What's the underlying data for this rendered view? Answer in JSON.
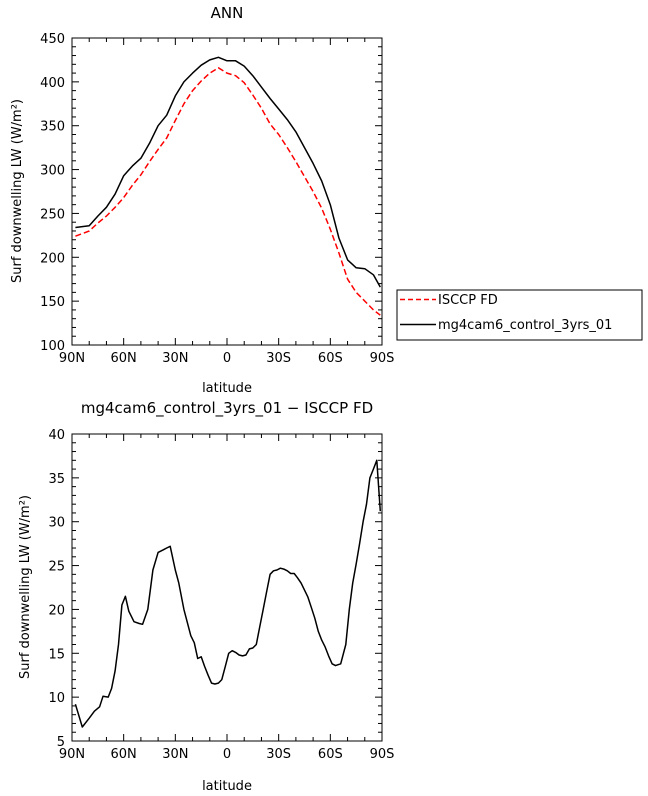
{
  "chart_data": [
    {
      "type": "line",
      "title": "ANN",
      "xlabel": "latitude",
      "ylabel": "Surf downwelling LW (W/m²)",
      "xlim": [
        -90,
        90
      ],
      "ylim": [
        100,
        450
      ],
      "xticks": [
        -90,
        -60,
        -30,
        0,
        30,
        60,
        90
      ],
      "xtick_labels": [
        "90N",
        "60N",
        "30N",
        "0",
        "30S",
        "60S",
        "90S"
      ],
      "yticks": [
        100,
        150,
        200,
        250,
        300,
        350,
        400,
        450
      ],
      "ytick_labels": [
        "100",
        "150",
        "200",
        "250",
        "300",
        "350",
        "400",
        "450"
      ],
      "legend_position": "right",
      "series": [
        {
          "name": "ISCCP FD",
          "color": "#ff0000",
          "style": "dashed",
          "x": [
            -88,
            -80,
            -75,
            -70,
            -65,
            -60,
            -55,
            -50,
            -45,
            -40,
            -35,
            -30,
            -25,
            -20,
            -15,
            -10,
            -5,
            0,
            5,
            10,
            15,
            20,
            25,
            30,
            35,
            40,
            45,
            50,
            55,
            60,
            65,
            70,
            75,
            80,
            85,
            89
          ],
          "y": [
            224,
            230,
            239,
            247,
            257,
            268,
            282,
            294,
            309,
            323,
            336,
            356,
            375,
            390,
            401,
            410,
            416,
            410,
            407,
            399,
            385,
            370,
            352,
            340,
            325,
            309,
            292,
            275,
            256,
            232,
            205,
            175,
            160,
            150,
            140,
            134
          ]
        },
        {
          "name": "mg4cam6_control_3yrs_01",
          "color": "#000000",
          "style": "solid",
          "x": [
            -88,
            -80,
            -75,
            -70,
            -65,
            -60,
            -55,
            -50,
            -45,
            -40,
            -35,
            -30,
            -25,
            -20,
            -15,
            -10,
            -5,
            0,
            5,
            10,
            15,
            20,
            25,
            30,
            35,
            40,
            45,
            50,
            55,
            60,
            65,
            70,
            75,
            80,
            85,
            89
          ],
          "y": [
            234,
            236,
            247,
            257,
            272,
            293,
            304,
            313,
            330,
            350,
            362,
            384,
            400,
            410,
            419,
            425,
            428,
            424,
            424,
            418,
            407,
            394,
            381,
            369,
            357,
            343,
            325,
            307,
            287,
            260,
            222,
            197,
            188,
            187,
            180,
            166
          ]
        }
      ]
    },
    {
      "type": "line",
      "title": "mg4cam6_control_3yrs_01 − ISCCP FD",
      "xlabel": "latitude",
      "ylabel": "Surf downwelling LW (W/m²)",
      "xlim": [
        -90,
        90
      ],
      "ylim": [
        5,
        40
      ],
      "xticks": [
        -90,
        -60,
        -30,
        0,
        30,
        60,
        90
      ],
      "xtick_labels": [
        "90N",
        "60N",
        "30N",
        "0",
        "30S",
        "60S",
        "90S"
      ],
      "yticks": [
        5,
        10,
        15,
        20,
        25,
        30,
        35,
        40
      ],
      "ytick_labels": [
        "5",
        "10",
        "15",
        "20",
        "25",
        "30",
        "35",
        "40"
      ],
      "series": [
        {
          "color": "#000000",
          "style": "solid",
          "x": [
            -88,
            -84,
            -80,
            -77,
            -74,
            -72,
            -69,
            -67,
            -65,
            -63,
            -61,
            -59,
            -57,
            -54,
            -51,
            -49,
            -46,
            -43,
            -40,
            -37,
            -35,
            -33,
            -30,
            -28,
            -25,
            -21,
            -19,
            -17,
            -15,
            -13,
            -11,
            -9,
            -7,
            -5,
            -3,
            -1,
            1,
            3,
            5,
            7,
            9,
            11,
            13,
            15,
            17,
            19,
            21,
            23,
            25,
            27,
            29,
            31,
            33,
            35,
            37,
            39,
            41,
            43,
            45,
            47,
            49,
            51,
            53,
            55,
            57,
            59,
            61,
            63,
            66,
            69,
            71,
            73,
            75,
            77,
            79,
            81,
            83,
            85,
            87,
            89
          ],
          "y": [
            9.2,
            6.6,
            7.6,
            8.4,
            8.9,
            10.1,
            10.0,
            11.0,
            13.0,
            16.0,
            20.5,
            21.5,
            19.8,
            18.6,
            18.4,
            18.3,
            20.0,
            24.5,
            26.5,
            26.8,
            27.0,
            27.2,
            24.5,
            23.0,
            20.0,
            17.0,
            16.2,
            14.4,
            14.6,
            13.5,
            12.5,
            11.6,
            11.5,
            11.6,
            12.0,
            13.5,
            15.0,
            15.3,
            15.1,
            14.8,
            14.7,
            14.8,
            15.5,
            15.6,
            16.0,
            18.0,
            20.0,
            22.0,
            24.0,
            24.4,
            24.5,
            24.7,
            24.6,
            24.4,
            24.1,
            24.1,
            23.6,
            23.0,
            22.2,
            21.4,
            20.2,
            19.0,
            17.5,
            16.5,
            15.7,
            14.7,
            13.8,
            13.6,
            13.8,
            16.0,
            20.0,
            23.0,
            25.2,
            27.5,
            30.0,
            32.0,
            35.0,
            36.0,
            37.0,
            31.2
          ]
        }
      ]
    }
  ]
}
